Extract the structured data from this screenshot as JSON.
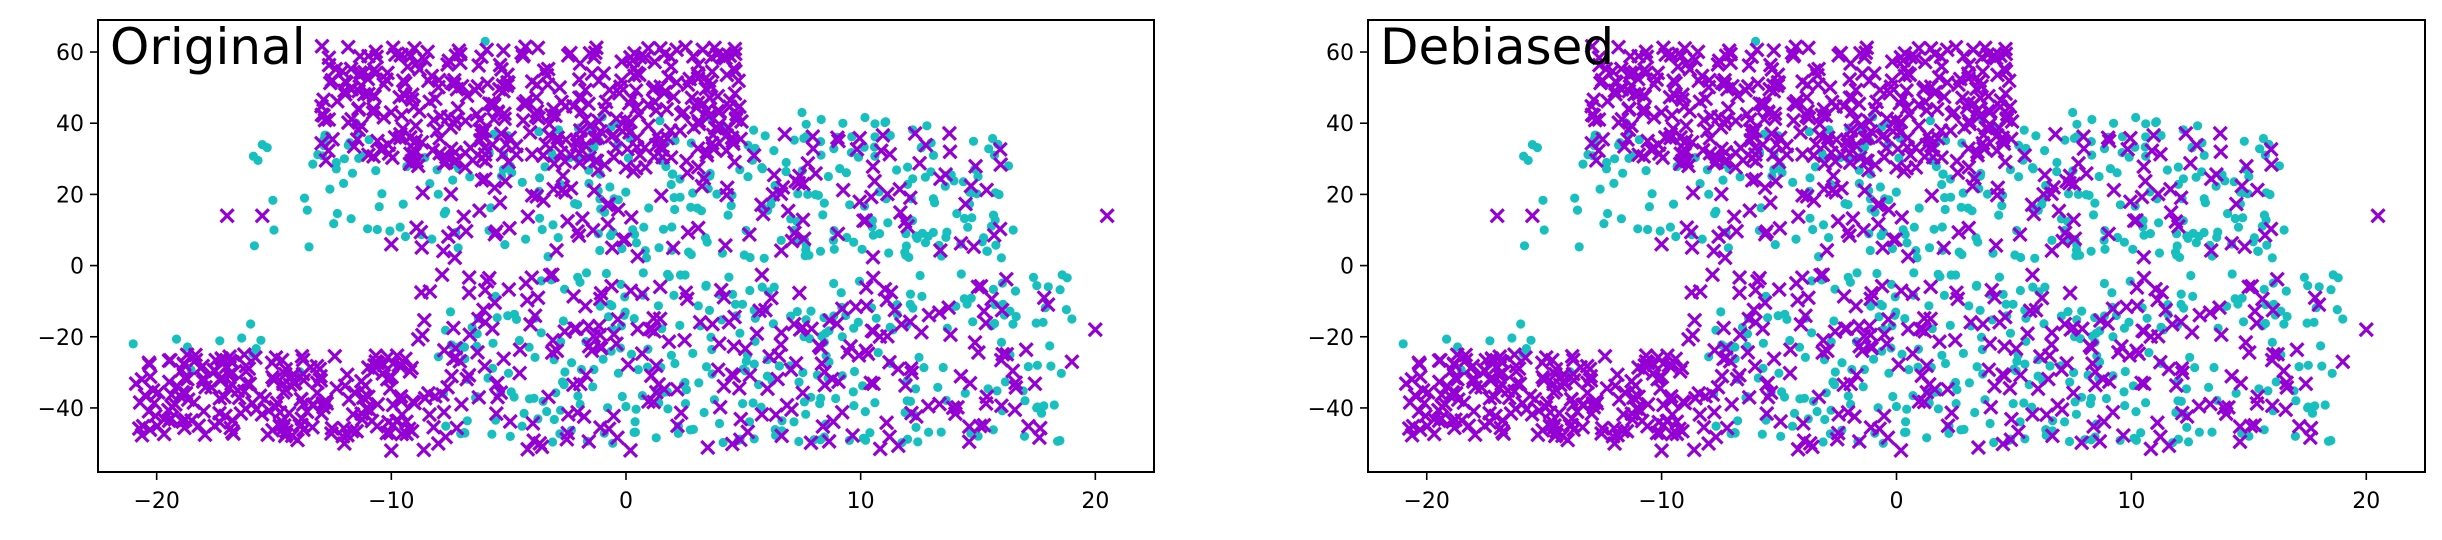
{
  "chart_data": [
    {
      "type": "scatter",
      "title": "Original",
      "xlabel": "",
      "ylabel": "",
      "xlim": [
        -22.5,
        22.5
      ],
      "ylim": [
        -58,
        69
      ],
      "xticks": [
        -20,
        -10,
        0,
        10,
        20
      ],
      "yticks": [
        -40,
        -20,
        0,
        20,
        40,
        60
      ],
      "grid": false,
      "series": [
        {
          "marker": "circle",
          "color": "#17bfbf",
          "clusters": [
            {
              "x_range": [
                -16,
                -8
              ],
              "y_range": [
                5,
                38
              ],
              "n": 45
            },
            {
              "x_range": [
                -8,
                16
              ],
              "y_range": [
                2,
                42
              ],
              "n": 260
            },
            {
              "x_range": [
                -8,
                19
              ],
              "y_range": [
                -50,
                -2
              ],
              "n": 320
            },
            {
              "x_range": [
                -21,
                -13
              ],
              "y_range": [
                -30,
                -15
              ],
              "n": 10
            }
          ],
          "points": [
            {
              "x": -21,
              "y": -22
            },
            {
              "x": -6,
              "y": 63
            },
            {
              "x": 7.5,
              "y": 43
            },
            {
              "x": 16.5,
              "y": 10
            },
            {
              "x": 19,
              "y": -15
            },
            {
              "x": 17.5,
              "y": -40
            },
            {
              "x": 15,
              "y": 25
            },
            {
              "x": 16.3,
              "y": 28
            },
            {
              "x": -15.5,
              "y": 34
            },
            {
              "x": -15,
              "y": 10
            },
            {
              "x": -11.5,
              "y": 40
            },
            {
              "x": -12,
              "y": 30
            }
          ]
        },
        {
          "marker": "x",
          "color": "#9400d3",
          "clusters": [
            {
              "x_range": [
                -13,
                5
              ],
              "y_range": [
                28,
                62
              ],
              "n": 380
            },
            {
              "x_range": [
                -9,
                16
              ],
              "y_range": [
                2,
                38
              ],
              "n": 140
            },
            {
              "x_range": [
                -21,
                -9
              ],
              "y_range": [
                -48,
                -25
              ],
              "n": 220
            },
            {
              "x_range": [
                -9,
                18
              ],
              "y_range": [
                -52,
                -2
              ],
              "n": 260
            }
          ],
          "points": [
            {
              "x": 20.5,
              "y": 14
            },
            {
              "x": 20,
              "y": -18
            },
            {
              "x": 19,
              "y": -27
            },
            {
              "x": -17,
              "y": 14
            },
            {
              "x": -15.5,
              "y": 14
            },
            {
              "x": -10,
              "y": 6
            },
            {
              "x": 12,
              "y": 11
            },
            {
              "x": 15,
              "y": -6
            },
            {
              "x": -10,
              "y": -52
            },
            {
              "x": -8,
              "y": -50
            },
            {
              "x": -12,
              "y": -50
            },
            {
              "x": -14,
              "y": -49
            }
          ]
        }
      ]
    },
    {
      "type": "scatter",
      "title": "Debiased",
      "xlabel": "",
      "ylabel": "",
      "xlim": [
        -22.5,
        22.5
      ],
      "ylim": [
        -58,
        69
      ],
      "xticks": [
        -20,
        -10,
        0,
        10,
        20
      ],
      "yticks": [
        -40,
        -20,
        0,
        20,
        40,
        60
      ],
      "grid": false,
      "series": [
        {
          "marker": "circle",
          "color": "#17bfbf",
          "clusters": [
            {
              "x_range": [
                -16,
                -8
              ],
              "y_range": [
                5,
                38
              ],
              "n": 45
            },
            {
              "x_range": [
                -8,
                16
              ],
              "y_range": [
                2,
                42
              ],
              "n": 260
            },
            {
              "x_range": [
                -8,
                19
              ],
              "y_range": [
                -50,
                -2
              ],
              "n": 320
            },
            {
              "x_range": [
                -21,
                -13
              ],
              "y_range": [
                -30,
                -15
              ],
              "n": 10
            }
          ],
          "points": [
            {
              "x": -21,
              "y": -22
            },
            {
              "x": -6,
              "y": 63
            },
            {
              "x": 7.5,
              "y": 43
            },
            {
              "x": 16.5,
              "y": 10
            },
            {
              "x": 19,
              "y": -15
            },
            {
              "x": 17.5,
              "y": -40
            },
            {
              "x": 15,
              "y": 25
            },
            {
              "x": 16.3,
              "y": 28
            },
            {
              "x": -15.5,
              "y": 34
            },
            {
              "x": -15,
              "y": 10
            },
            {
              "x": -11.5,
              "y": 40
            },
            {
              "x": -12,
              "y": 30
            }
          ]
        },
        {
          "marker": "x",
          "color": "#9400d3",
          "clusters": [
            {
              "x_range": [
                -13,
                5
              ],
              "y_range": [
                28,
                62
              ],
              "n": 380
            },
            {
              "x_range": [
                -9,
                16
              ],
              "y_range": [
                2,
                38
              ],
              "n": 140
            },
            {
              "x_range": [
                -21,
                -9
              ],
              "y_range": [
                -48,
                -25
              ],
              "n": 220
            },
            {
              "x_range": [
                -9,
                18
              ],
              "y_range": [
                -52,
                -2
              ],
              "n": 260
            }
          ],
          "points": [
            {
              "x": 20.5,
              "y": 14
            },
            {
              "x": 20,
              "y": -18
            },
            {
              "x": 19,
              "y": -27
            },
            {
              "x": -17,
              "y": 14
            },
            {
              "x": -15.5,
              "y": 14
            },
            {
              "x": -10,
              "y": 6
            },
            {
              "x": 12,
              "y": 11
            },
            {
              "x": 15,
              "y": -6
            },
            {
              "x": -10,
              "y": -52
            },
            {
              "x": -8,
              "y": -50
            },
            {
              "x": -12,
              "y": -50
            },
            {
              "x": -14,
              "y": -49
            }
          ]
        }
      ]
    }
  ]
}
